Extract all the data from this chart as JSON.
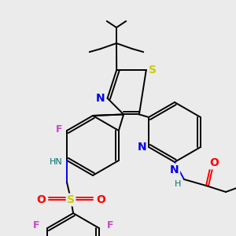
{
  "background_color": "#ebebeb",
  "colors": {
    "S": "#cccc00",
    "N": "#0000ee",
    "O": "#ff0000",
    "F": "#cc44cc",
    "H": "#007070",
    "C": "#000000"
  },
  "figsize": [
    3.0,
    3.0
  ],
  "dpi": 100
}
